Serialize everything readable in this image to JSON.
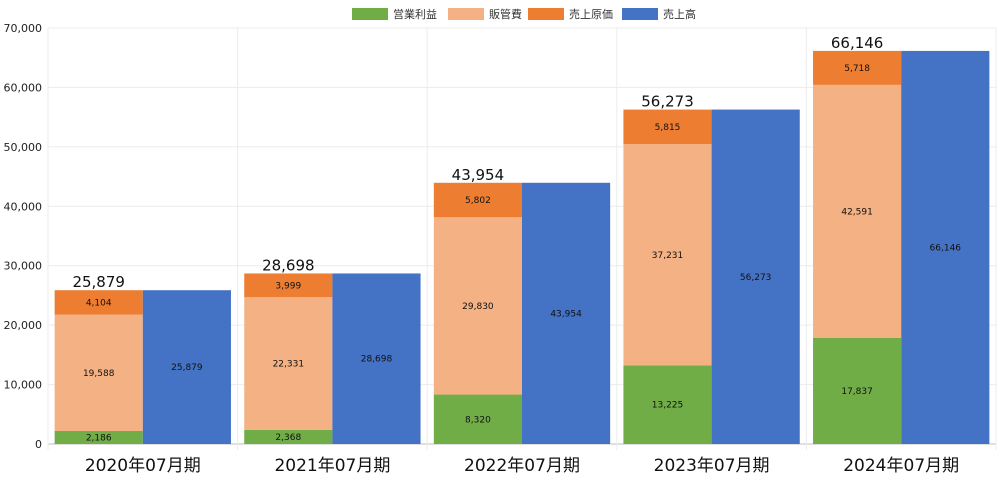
{
  "chart_data": {
    "type": "bar",
    "categories": [
      "2020年07月期",
      "2021年07月期",
      "2022年07月期",
      "2023年07月期",
      "2024年07月期"
    ],
    "stacked_series": [
      {
        "name": "営業利益",
        "color": "#70ad47",
        "values": [
          2186,
          2368,
          8320,
          13225,
          17837
        ]
      },
      {
        "name": "販管費",
        "color": "#f4b183",
        "values": [
          19588,
          22331,
          29830,
          37231,
          42591
        ]
      },
      {
        "name": "売上原価",
        "color": "#ed7d31",
        "values": [
          4104,
          3999,
          5802,
          5815,
          5718
        ]
      }
    ],
    "series": [
      {
        "name": "売上高",
        "color": "#4472c4",
        "values": [
          25879,
          28698,
          43954,
          56273,
          66146
        ]
      }
    ],
    "segment_labels": [
      [
        "2,186",
        "19,588",
        "4,104"
      ],
      [
        "2,368",
        "22,331",
        "3,999"
      ],
      [
        "8,320",
        "29,830",
        "5,802"
      ],
      [
        "13,225",
        "37,231",
        "5,815"
      ],
      [
        "17,837",
        "42,591",
        "5,718"
      ]
    ],
    "sales_labels": [
      "25,879",
      "28,698",
      "43,954",
      "56,273",
      "66,146"
    ],
    "total_labels": [
      "25,879",
      "28,698",
      "43,954",
      "56,273",
      "66,146"
    ],
    "y_ticks": [
      0,
      10000,
      20000,
      30000,
      40000,
      50000,
      60000,
      70000
    ],
    "y_tick_labels": [
      "0",
      "10,000",
      "20,000",
      "30,000",
      "40,000",
      "50,000",
      "60,000",
      "70,000"
    ],
    "ylim": [
      0,
      70000
    ],
    "legend": [
      "営業利益",
      "販管費",
      "売上原価",
      "売上高"
    ],
    "legend_position": "top-center",
    "grid": true,
    "title": "",
    "xlabel": "",
    "ylabel": ""
  }
}
